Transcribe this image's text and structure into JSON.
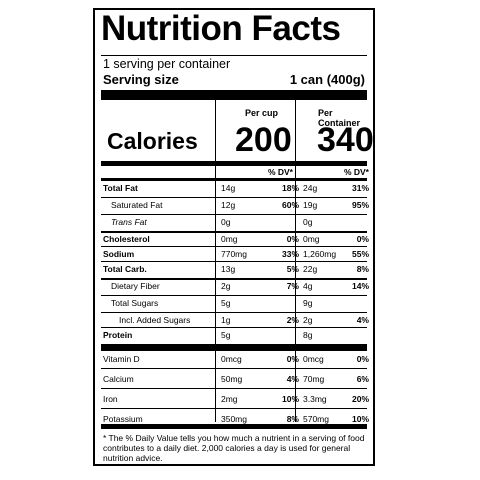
{
  "title": "Nutrition Facts",
  "servings_per_container": "1 serving per container",
  "serving_size_label": "Serving size",
  "serving_size_value": "1 can (400g)",
  "col_cup": "Per cup",
  "col_container": "Per Container",
  "calories_label": "Calories",
  "calories_cup": "200",
  "calories_container": "340",
  "dv_header": "% DV*",
  "rows": [
    {
      "name": "Total Fat",
      "bold": true,
      "indent": 0,
      "cup_amt": "14g",
      "cup_dv": "18%",
      "cont_amt": "24g",
      "cont_dv": "31%"
    },
    {
      "name": "Saturated Fat",
      "bold": false,
      "indent": 1,
      "cup_amt": "12g",
      "cup_dv": "60%",
      "cont_amt": "19g",
      "cont_dv": "95%"
    },
    {
      "name": "Trans Fat",
      "bold": false,
      "indent": 1,
      "italic": true,
      "cup_amt": "0g",
      "cup_dv": "",
      "cont_amt": "0g",
      "cont_dv": ""
    },
    {
      "name": "Cholesterol",
      "bold": true,
      "indent": 0,
      "cup_amt": "0mg",
      "cup_dv": "0%",
      "cont_amt": "0mg",
      "cont_dv": "0%"
    },
    {
      "name": "Sodium",
      "bold": true,
      "indent": 0,
      "cup_amt": "770mg",
      "cup_dv": "33%",
      "cont_amt": "1,260mg",
      "cont_dv": "55%"
    },
    {
      "name": "Total Carb.",
      "bold": true,
      "indent": 0,
      "cup_amt": "13g",
      "cup_dv": "5%",
      "cont_amt": "22g",
      "cont_dv": "8%"
    },
    {
      "name": "Dietary Fiber",
      "bold": false,
      "indent": 1,
      "cup_amt": "2g",
      "cup_dv": "7%",
      "cont_amt": "4g",
      "cont_dv": "14%"
    },
    {
      "name": "Total Sugars",
      "bold": false,
      "indent": 1,
      "cup_amt": "5g",
      "cup_dv": "",
      "cont_amt": "9g",
      "cont_dv": ""
    },
    {
      "name": "Incl. Added Sugars",
      "bold": false,
      "indent": 2,
      "cup_amt": "1g",
      "cup_dv": "2%",
      "cont_amt": "2g",
      "cont_dv": "4%"
    },
    {
      "name": "Protein",
      "bold": true,
      "indent": 0,
      "cup_amt": "5g",
      "cup_dv": "",
      "cont_amt": "8g",
      "cont_dv": ""
    }
  ],
  "vitamins": [
    {
      "name": "Vitamin D",
      "cup_amt": "0mcg",
      "cup_dv": "0%",
      "cont_amt": "0mcg",
      "cont_dv": "0%"
    },
    {
      "name": "Calcium",
      "cup_amt": "50mg",
      "cup_dv": "4%",
      "cont_amt": "70mg",
      "cont_dv": "6%"
    },
    {
      "name": "Iron",
      "cup_amt": "2mg",
      "cup_dv": "10%",
      "cont_amt": "3.3mg",
      "cont_dv": "20%"
    },
    {
      "name": "Potassium",
      "cup_amt": "350mg",
      "cup_dv": "8%",
      "cont_amt": "570mg",
      "cont_dv": "10%"
    }
  ],
  "footnote": "* The % Daily Value tells you how much a nutrient in a serving of food contributes to a daily diet. 2,000 calories a day is used for general nutrition advice."
}
